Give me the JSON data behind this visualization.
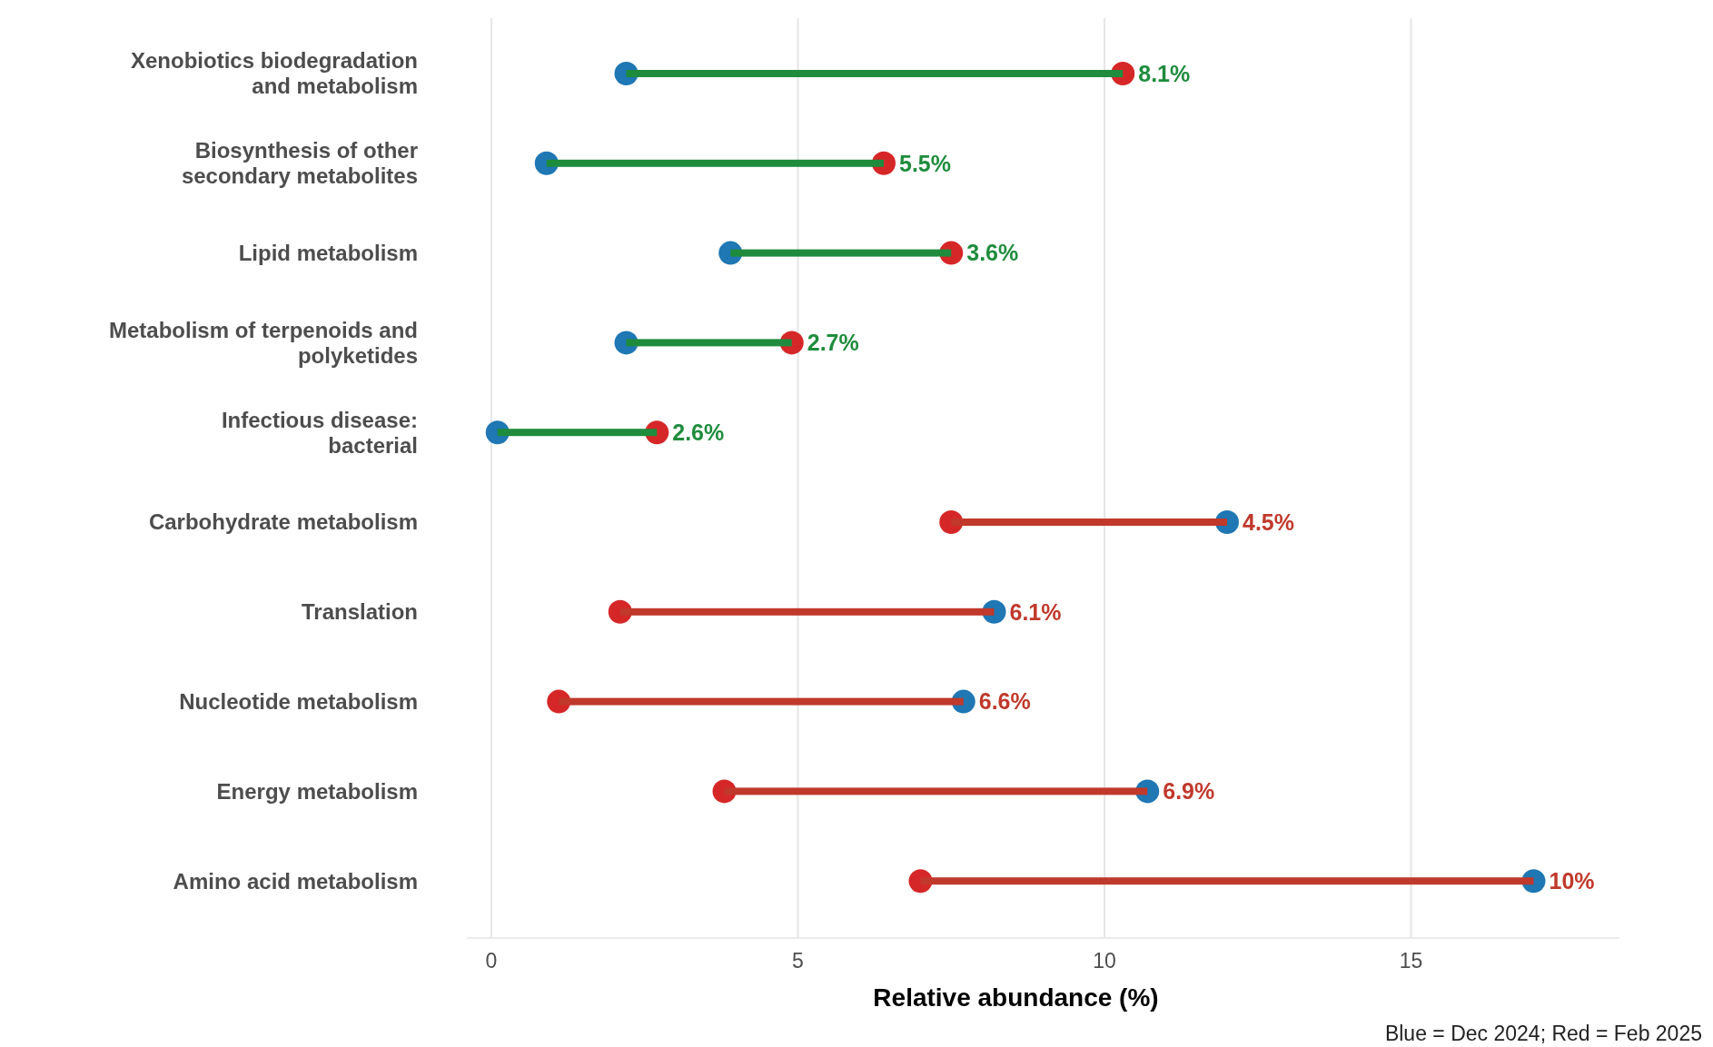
{
  "chart_data": {
    "type": "bar",
    "orientation": "horizontal",
    "xlabel": "Relative abundance (%)",
    "categories": [
      "Xenobiotics biodegradation\nand metabolism",
      "Biosynthesis of other\nsecondary metabolites",
      "Lipid metabolism",
      "Metabolism of terpenoids and\npolyketides",
      "Infectious disease:\nbacterial",
      "Carbohydrate metabolism",
      "Translation",
      "Nucleotide metabolism",
      "Energy metabolism",
      "Amino acid metabolism"
    ],
    "series": [
      {
        "base": [
          2.2,
          0.9,
          3.9,
          2.2,
          0.1,
          7.5,
          2.1,
          1.1,
          3.8,
          7.0
        ],
        "values": [
          8.1,
          5.5,
          3.6,
          2.7,
          2.6,
          4.5,
          6.1,
          6.6,
          6.9,
          10.0
        ],
        "colors": [
          "#1e8c3c",
          "#1e8c3c",
          "#1e8c3c",
          "#1e8c3c",
          "#1e8c3c",
          "#c0392b",
          "#c0392b",
          "#c0392b",
          "#c0392b",
          "#c0392b"
        ],
        "value_labels": [
          "8.1%",
          "5.5%",
          "3.6%",
          "2.7%",
          "2.6%",
          "4.5%",
          "6.1%",
          "6.6%",
          "6.9%",
          "10%"
        ]
      },
      {
        "type": "scatter",
        "color": "#1f77b4",
        "values": [
          2.2,
          0.9,
          3.9,
          2.2,
          0.1,
          12.0,
          8.2,
          7.7,
          10.7,
          17.0
        ]
      },
      {
        "type": "scatter",
        "color": "#d62728",
        "values": [
          10.3,
          6.4,
          7.5,
          4.9,
          2.7,
          7.5,
          2.1,
          1.1,
          3.8,
          7.0
        ]
      }
    ],
    "xlim": [
      -0.4,
      18.4
    ],
    "xticks": [
      0,
      5,
      10,
      15
    ],
    "grid": "x",
    "marker": "circle",
    "annotations": [
      "Blue = Dec 2024; Red = Feb 2025"
    ]
  }
}
